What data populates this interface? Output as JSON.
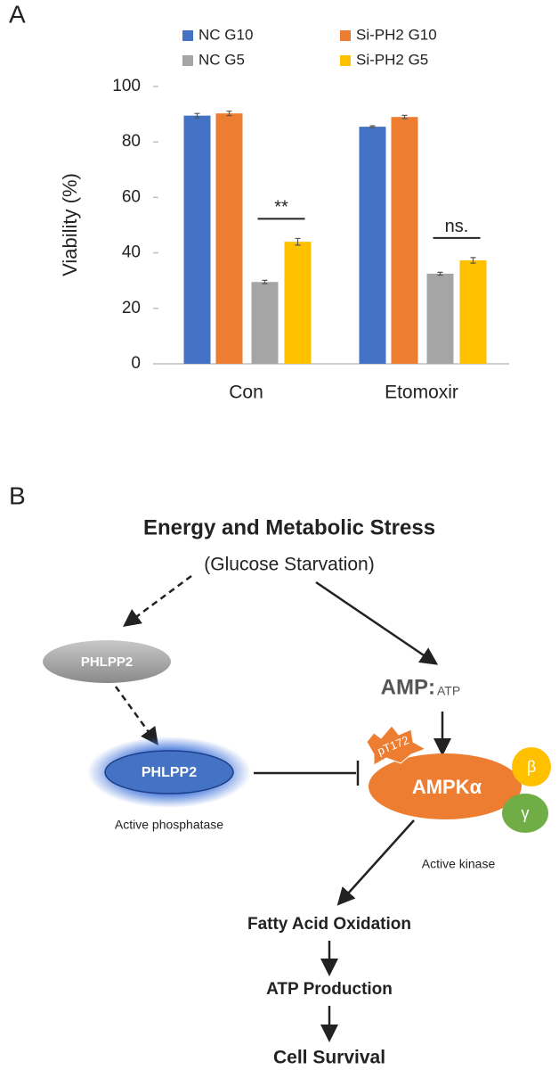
{
  "panel_labels": [
    "A",
    "B"
  ],
  "chart_data": {
    "type": "bar",
    "ylabel": "Viability (%)",
    "categories": [
      "Con",
      "Etomoxir"
    ],
    "series": [
      {
        "name": "NC G10",
        "color": "#4472c4",
        "values": [
          89.5,
          85.5
        ],
        "errors": [
          0.8,
          0.3
        ]
      },
      {
        "name": "Si-PH2 G10",
        "color": "#ed7d31",
        "values": [
          90.3,
          89
        ],
        "errors": [
          0.8,
          0.6
        ]
      },
      {
        "name": "NC G5",
        "color": "#a5a5a5",
        "values": [
          29.5,
          32.5
        ],
        "errors": [
          0.6,
          0.5
        ]
      },
      {
        "name": "Si-PH2 G5",
        "color": "#ffc000",
        "values": [
          44,
          37.3
        ],
        "errors": [
          1.2,
          1.0
        ]
      }
    ],
    "annotations": [
      "**",
      "ns."
    ],
    "ylim": [
      0,
      100
    ],
    "yticks": [
      0,
      20,
      40,
      60,
      80,
      100
    ],
    "grid": false
  },
  "diagram": {
    "title": "Energy and Metabolic Stress",
    "subtitle": "(Glucose Starvation)",
    "nodes": [
      {
        "label": "PHLPP2"
      },
      {
        "label": "PHLPP2",
        "caption": "Active phosphatase"
      },
      {
        "label": "AMP:",
        "sub": "ATP"
      },
      {
        "label": "AMPKα",
        "site": "pT172",
        "subunits": [
          "β",
          "γ"
        ],
        "caption": "Active kinase"
      },
      {
        "label": "Fatty Acid Oxidation"
      },
      {
        "label": "ATP Production"
      },
      {
        "label": "Cell Survival"
      }
    ]
  }
}
